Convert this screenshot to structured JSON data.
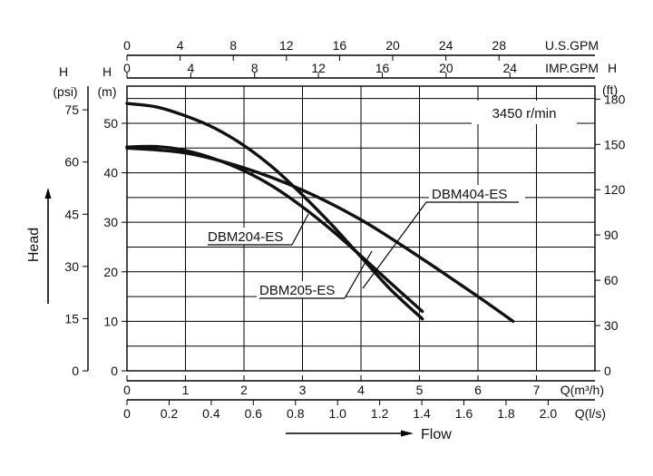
{
  "chart_data": {
    "type": "line",
    "title": "",
    "speed_label": "3450 r/min",
    "xlabel": "Flow",
    "ylabel": "Head",
    "axes": {
      "q_m3h": {
        "label": "Q(m³/h)",
        "range": [
          0,
          8
        ],
        "ticks": [
          "0",
          "1",
          "2",
          "3",
          "4",
          "5",
          "6",
          "7"
        ]
      },
      "q_ls": {
        "label": "Q(l/s)",
        "range": [
          0,
          2.2222
        ],
        "ticks": [
          "0",
          "0.2",
          "0.4",
          "0.6",
          "0.8",
          "1.0",
          "1.2",
          "1.4",
          "1.6",
          "1.8",
          "2.0"
        ]
      },
      "us_gpm": {
        "label": "U.S.GPM",
        "range": [
          0,
          35.22
        ],
        "ticks": [
          "0",
          "4",
          "8",
          "12",
          "16",
          "20",
          "24",
          "28"
        ]
      },
      "imp_gpm": {
        "label": "IMP.GPM",
        "range": [
          0,
          29.33
        ],
        "ticks": [
          "0",
          "4",
          "8",
          "12",
          "16",
          "20",
          "24"
        ]
      },
      "h_m": {
        "label": "H",
        "unit": "(m)",
        "range": [
          0,
          57.5
        ],
        "ticks": [
          "0",
          "10",
          "20",
          "30",
          "40",
          "50"
        ]
      },
      "h_psi": {
        "label": "H",
        "unit": "(psi)",
        "range": [
          0,
          81.8
        ],
        "ticks": [
          "0",
          "15",
          "30",
          "45",
          "60",
          "75"
        ]
      },
      "h_ft": {
        "label": "H",
        "unit": "(ft)",
        "range": [
          0,
          188.6
        ],
        "ticks": [
          "0",
          "30",
          "60",
          "90",
          "120",
          "150",
          "180"
        ]
      }
    },
    "grid": true,
    "series": [
      {
        "name": "DBM204-ES",
        "x": [
          0,
          0.5,
          1,
          1.5,
          2,
          2.5,
          3,
          3.5,
          4,
          4.5,
          5.05
        ],
        "y": [
          54,
          53.3,
          51.5,
          49,
          45.5,
          41,
          35.5,
          29.5,
          23,
          16.5,
          10.5
        ]
      },
      {
        "name": "DBM205-ES",
        "x": [
          0,
          0.5,
          1,
          1.5,
          2,
          2.5,
          3,
          3.5,
          4,
          4.5,
          5.05
        ],
        "y": [
          45.2,
          45.3,
          44.5,
          42.8,
          40.4,
          37.2,
          33.1,
          28.4,
          23.2,
          17.8,
          12
        ]
      },
      {
        "name": "DBM404-ES",
        "x": [
          0,
          1,
          2,
          3,
          4,
          5,
          6,
          6.6
        ],
        "y": [
          45,
          44,
          41,
          36.5,
          30.5,
          23,
          15,
          10
        ]
      }
    ]
  }
}
